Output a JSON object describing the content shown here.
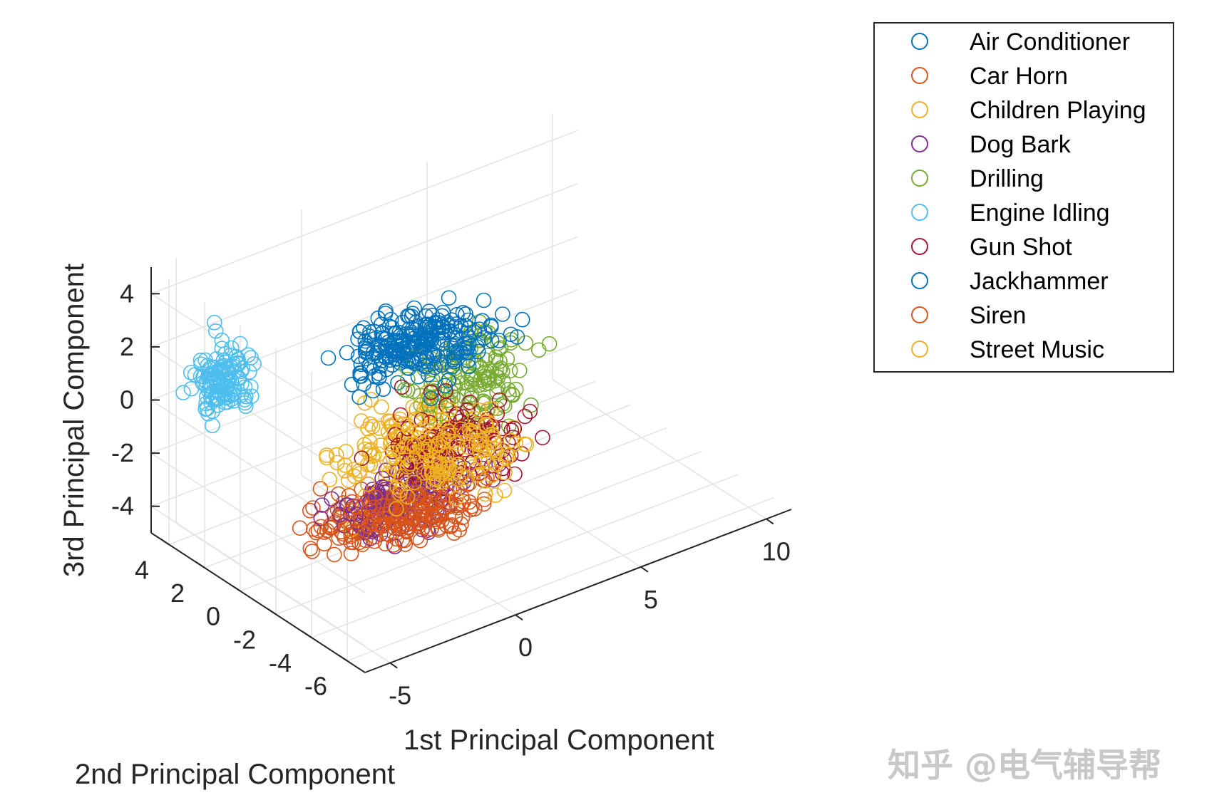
{
  "chart_data": {
    "type": "scatter",
    "xlabel": "1st Principal Component",
    "ylabel": "2nd Principal Component",
    "zlabel": "3rd Principal Component",
    "x_ticks": [
      "-5",
      "0",
      "5",
      "10"
    ],
    "y_ticks": [
      "4",
      "2",
      "0",
      "-2",
      "-4",
      "-6"
    ],
    "z_ticks": [
      "4",
      "2",
      "0",
      "-2",
      "-4"
    ],
    "xlim": [
      -6,
      11
    ],
    "ylim": [
      -7,
      5
    ],
    "zlim": [
      -5,
      5
    ],
    "grid": true,
    "legend_position": "top-right",
    "marker": "open-circle",
    "series": [
      {
        "name": "Air Conditioner",
        "color": "#0072BD",
        "center": [
          0.5,
          0.0,
          2.0
        ],
        "spread": [
          3.0,
          1.5,
          1.0
        ]
      },
      {
        "name": "Car Horn",
        "color": "#D95319",
        "center": [
          -2.0,
          -1.5,
          -3.0
        ],
        "spread": [
          2.5,
          1.5,
          1.0
        ]
      },
      {
        "name": "Children Playing",
        "color": "#EDB120",
        "center": [
          0.0,
          -1.0,
          -1.0
        ],
        "spread": [
          3.0,
          2.0,
          1.5
        ]
      },
      {
        "name": "Dog Bark",
        "color": "#7E2F8E",
        "center": [
          -1.0,
          -2.0,
          -2.5
        ],
        "spread": [
          3.0,
          1.5,
          1.2
        ]
      },
      {
        "name": "Drilling",
        "color": "#77AC30",
        "center": [
          2.5,
          -1.0,
          0.5
        ],
        "spread": [
          3.0,
          2.0,
          1.5
        ]
      },
      {
        "name": "Engine Idling",
        "color": "#4DBEEE",
        "center": [
          -4.5,
          3.0,
          1.0
        ],
        "spread": [
          1.0,
          1.2,
          1.5
        ]
      },
      {
        "name": "Gun Shot",
        "color": "#A2142F",
        "center": [
          1.0,
          -2.0,
          -1.0
        ],
        "spread": [
          3.0,
          2.0,
          1.5
        ]
      },
      {
        "name": "Jackhammer",
        "color": "#0072BD",
        "center": [
          1.5,
          0.0,
          1.5
        ],
        "spread": [
          3.0,
          2.0,
          1.0
        ]
      },
      {
        "name": "Siren",
        "color": "#D95319",
        "center": [
          -1.0,
          -3.0,
          -2.5
        ],
        "spread": [
          3.0,
          1.5,
          1.0
        ]
      },
      {
        "name": "Street Music",
        "color": "#EDB120",
        "center": [
          1.0,
          -2.0,
          -1.5
        ],
        "spread": [
          3.0,
          2.0,
          1.5
        ]
      }
    ]
  },
  "watermark": "知乎 @电气辅导帮"
}
